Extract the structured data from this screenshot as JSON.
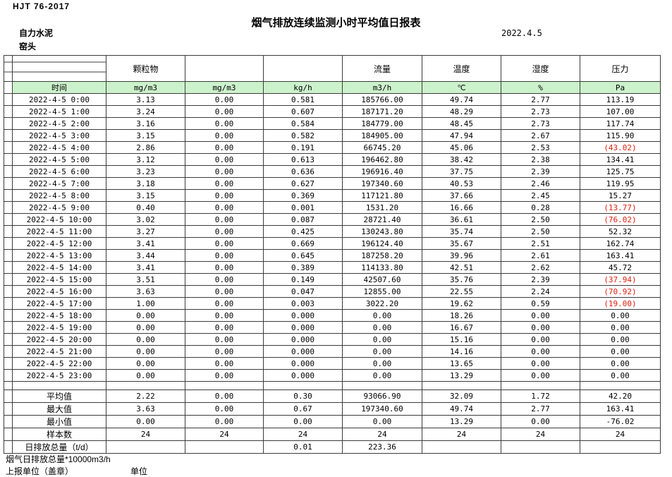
{
  "colors": {
    "header_green": "#ccf2cc",
    "negative_red": "#e02010",
    "border": "#3c3c3c"
  },
  "header": {
    "doc_code": "HJT  76-2017",
    "title": "烟气排放连续监测小时平均值日报表",
    "date": "2022.4.5",
    "company": "自力水泥",
    "location": "窑头"
  },
  "table": {
    "group_headers": [
      "",
      "",
      "颗粒物",
      "",
      "",
      "流量",
      "温度",
      "湿度",
      "压力"
    ],
    "unit_headers": [
      "",
      "时间",
      "mg/m3",
      "mg/m3",
      "kg/h",
      "m3/h",
      "℃",
      "%",
      "Pa"
    ],
    "rows": [
      {
        "time": "2022-4-5 0:00",
        "values": [
          "3.13",
          "0.00",
          "0.581",
          "185766.00",
          "49.74",
          "2.77",
          "113.19"
        ]
      },
      {
        "time": "2022-4-5 1:00",
        "values": [
          "3.24",
          "0.00",
          "0.607",
          "187171.20",
          "48.29",
          "2.73",
          "107.00"
        ]
      },
      {
        "time": "2022-4-5 2:00",
        "values": [
          "3.16",
          "0.00",
          "0.584",
          "184779.00",
          "48.45",
          "2.73",
          "117.74"
        ]
      },
      {
        "time": "2022-4-5 3:00",
        "values": [
          "3.15",
          "0.00",
          "0.582",
          "184905.00",
          "47.94",
          "2.67",
          "115.90"
        ]
      },
      {
        "time": "2022-4-5 4:00",
        "values": [
          "2.86",
          "0.00",
          "0.191",
          "66745.20",
          "45.06",
          "2.53",
          "(43.02)"
        ]
      },
      {
        "time": "2022-4-5 5:00",
        "values": [
          "3.12",
          "0.00",
          "0.613",
          "196462.80",
          "38.42",
          "2.38",
          "134.41"
        ]
      },
      {
        "time": "2022-4-5 6:00",
        "values": [
          "3.23",
          "0.00",
          "0.636",
          "196916.40",
          "37.75",
          "2.39",
          "125.75"
        ]
      },
      {
        "time": "2022-4-5 7:00",
        "values": [
          "3.18",
          "0.00",
          "0.627",
          "197340.60",
          "40.53",
          "2.46",
          "119.95"
        ]
      },
      {
        "time": "2022-4-5 8:00",
        "values": [
          "3.15",
          "0.00",
          "0.369",
          "117121.80",
          "37.66",
          "2.45",
          "15.27"
        ]
      },
      {
        "time": "2022-4-5 9:00",
        "values": [
          "0.40",
          "0.00",
          "0.001",
          "1531.20",
          "16.66",
          "0.28",
          "(13.77)"
        ]
      },
      {
        "time": "2022-4-5 10:00",
        "values": [
          "3.02",
          "0.00",
          "0.087",
          "28721.40",
          "36.61",
          "2.50",
          "(76.02)"
        ]
      },
      {
        "time": "2022-4-5 11:00",
        "values": [
          "3.27",
          "0.00",
          "0.425",
          "130243.80",
          "35.74",
          "2.50",
          "52.32"
        ]
      },
      {
        "time": "2022-4-5 12:00",
        "values": [
          "3.41",
          "0.00",
          "0.669",
          "196124.40",
          "35.67",
          "2.51",
          "162.74"
        ]
      },
      {
        "time": "2022-4-5 13:00",
        "values": [
          "3.44",
          "0.00",
          "0.645",
          "187258.20",
          "39.96",
          "2.61",
          "163.41"
        ]
      },
      {
        "time": "2022-4-5 14:00",
        "values": [
          "3.41",
          "0.00",
          "0.389",
          "114133.80",
          "42.51",
          "2.62",
          "45.72"
        ]
      },
      {
        "time": "2022-4-5 15:00",
        "values": [
          "3.51",
          "0.00",
          "0.149",
          "42507.60",
          "35.76",
          "2.39",
          "(37.94)"
        ]
      },
      {
        "time": "2022-4-5 16:00",
        "values": [
          "3.63",
          "0.00",
          "0.047",
          "12855.00",
          "22.55",
          "2.24",
          "(70.92)"
        ]
      },
      {
        "time": "2022-4-5 17:00",
        "values": [
          "1.00",
          "0.00",
          "0.003",
          "3022.20",
          "19.62",
          "0.59",
          "(19.00)"
        ]
      },
      {
        "time": "2022-4-5 18:00",
        "values": [
          "0.00",
          "0.00",
          "0.000",
          "0.00",
          "18.26",
          "0.00",
          "0.00"
        ]
      },
      {
        "time": "2022-4-5 19:00",
        "values": [
          "0.00",
          "0.00",
          "0.000",
          "0.00",
          "16.67",
          "0.00",
          "0.00"
        ]
      },
      {
        "time": "2022-4-5 20:00",
        "values": [
          "0.00",
          "0.00",
          "0.000",
          "0.00",
          "15.16",
          "0.00",
          "0.00"
        ]
      },
      {
        "time": "2022-4-5 21:00",
        "values": [
          "0.00",
          "0.00",
          "0.000",
          "0.00",
          "14.16",
          "0.00",
          "0.00"
        ]
      },
      {
        "time": "2022-4-5 22:00",
        "values": [
          "0.00",
          "0.00",
          "0.000",
          "0.00",
          "13.65",
          "0.00",
          "0.00"
        ]
      },
      {
        "time": "2022-4-5 23:00",
        "values": [
          "0.00",
          "0.00",
          "0.000",
          "0.00",
          "13.29",
          "0.00",
          "0.00"
        ]
      }
    ],
    "summary_rows": [
      {
        "label": "平均值",
        "values": [
          "2.22",
          "0.00",
          "0.30",
          "93066.90",
          "32.09",
          "1.72",
          "42.20"
        ]
      },
      {
        "label": "最大值",
        "values": [
          "3.63",
          "0.00",
          "0.67",
          "197340.60",
          "49.74",
          "2.77",
          "163.41"
        ]
      },
      {
        "label": "最小值",
        "values": [
          "0.00",
          "0.00",
          "0.00",
          "0.00",
          "13.29",
          "0.00",
          "-76.02"
        ]
      },
      {
        "label": "样本数",
        "values": [
          "24",
          "24",
          "24",
          "24",
          "24",
          "24",
          "24"
        ]
      },
      {
        "label": "日排放总量（t/d）",
        "values": [
          "",
          "",
          "0.01",
          "223.36",
          "",
          "",
          ""
        ]
      }
    ]
  },
  "footer": {
    "note": "烟气日排放总量*10000m3/h",
    "report_unit": "上报单位（盖章）",
    "unit_label": "单位"
  }
}
